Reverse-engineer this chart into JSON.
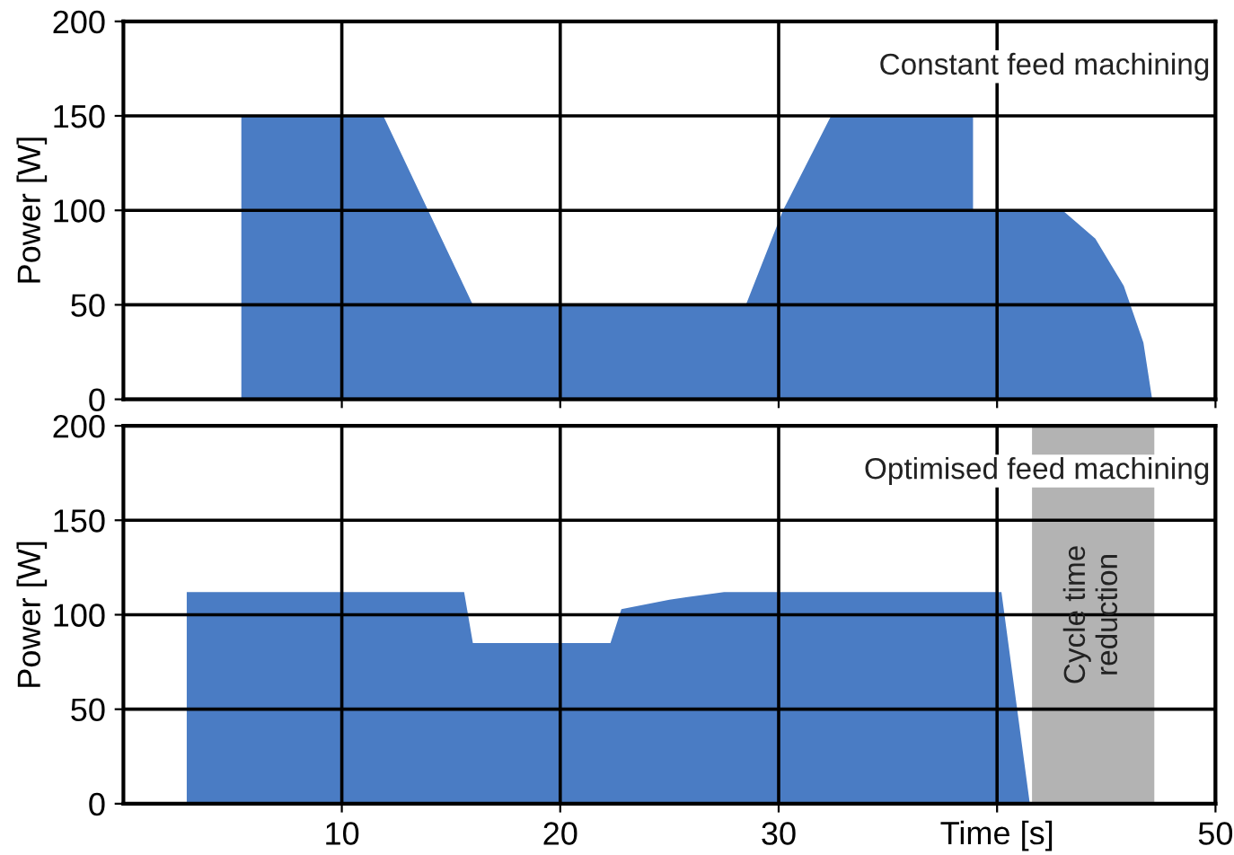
{
  "chart_data": [
    {
      "type": "area",
      "ylabel": "Power [W]",
      "xlim": [
        0,
        50
      ],
      "ylim": [
        0,
        200
      ],
      "xticks": [
        10,
        20,
        30,
        40,
        50
      ],
      "yticks": [
        0,
        50,
        100,
        150,
        200
      ],
      "grid": true,
      "tick_labels": "y",
      "annotations": [
        "Constant feed machining"
      ],
      "series": [
        {
          "color": "#4a7cc4",
          "x": [
            5.4,
            5.4,
            11.9,
            16.0,
            28.5,
            30.2,
            32.4,
            38.9,
            38.9,
            43.0,
            44.5,
            45.8,
            46.7,
            47.1
          ],
          "values": [
            0,
            150,
            150,
            50,
            50,
            100,
            150,
            150,
            100,
            100,
            85,
            60,
            30,
            0
          ]
        }
      ]
    },
    {
      "type": "area",
      "ylabel": "Power [W]",
      "xlabel": "Time [s]",
      "xlim": [
        0,
        50
      ],
      "ylim": [
        0,
        200
      ],
      "xticks": [
        10,
        20,
        30,
        {
          "value": 40,
          "label": null
        },
        50
      ],
      "yticks": [
        0,
        50,
        100,
        150,
        200
      ],
      "grid": true,
      "annotations": [
        "Optimised feed machining"
      ],
      "bands": [
        {
          "axis": "x",
          "from": 41.6,
          "to": 47.2,
          "label": "Cycle time reduction",
          "color": "#b3b3b3"
        }
      ],
      "series": [
        {
          "color": "#4a7cc4",
          "x": [
            2.9,
            2.9,
            15.6,
            16.0,
            22.3,
            22.8,
            25.0,
            27.5,
            40.2,
            41.5
          ],
          "values": [
            0,
            112,
            112,
            85,
            85,
            103,
            108,
            112,
            112,
            0
          ]
        }
      ]
    }
  ]
}
